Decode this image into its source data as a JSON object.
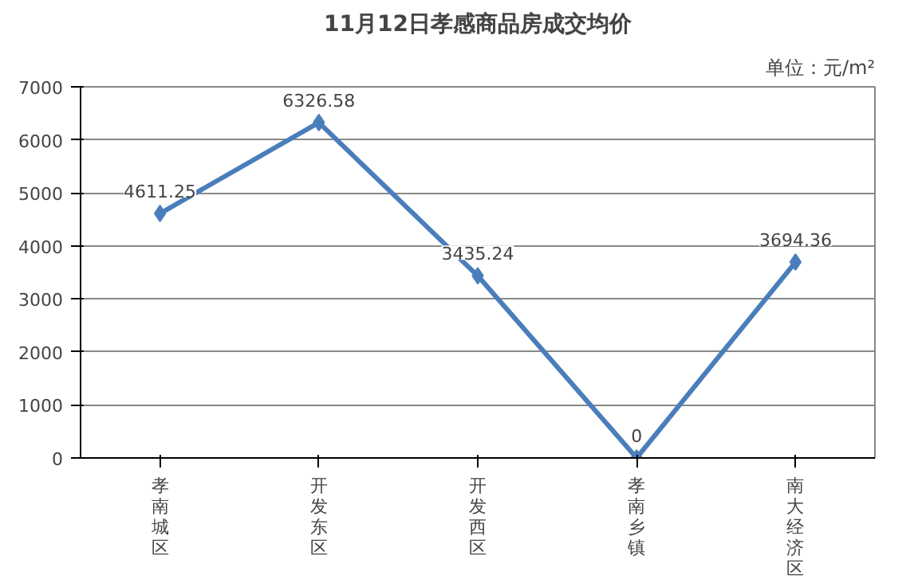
{
  "chart_data": {
    "type": "line",
    "title": "11月12日孝感商品房成交均价",
    "annotations": [
      "单位：元/m²"
    ],
    "categories": [
      "孝南城区",
      "开发东区",
      "开发西区",
      "孝南乡镇",
      "南大经济区"
    ],
    "series": [
      {
        "color": "#4a7ebb",
        "values": [
          4611.25,
          6326.58,
          3435.24,
          0,
          3694.36
        ]
      }
    ],
    "ylim": [
      0,
      7000
    ],
    "yticks": [
      0,
      1000,
      2000,
      3000,
      4000,
      5000,
      6000,
      7000
    ],
    "grid": "y",
    "marker": "diamond",
    "line_style": "solid",
    "data_labels": true
  }
}
